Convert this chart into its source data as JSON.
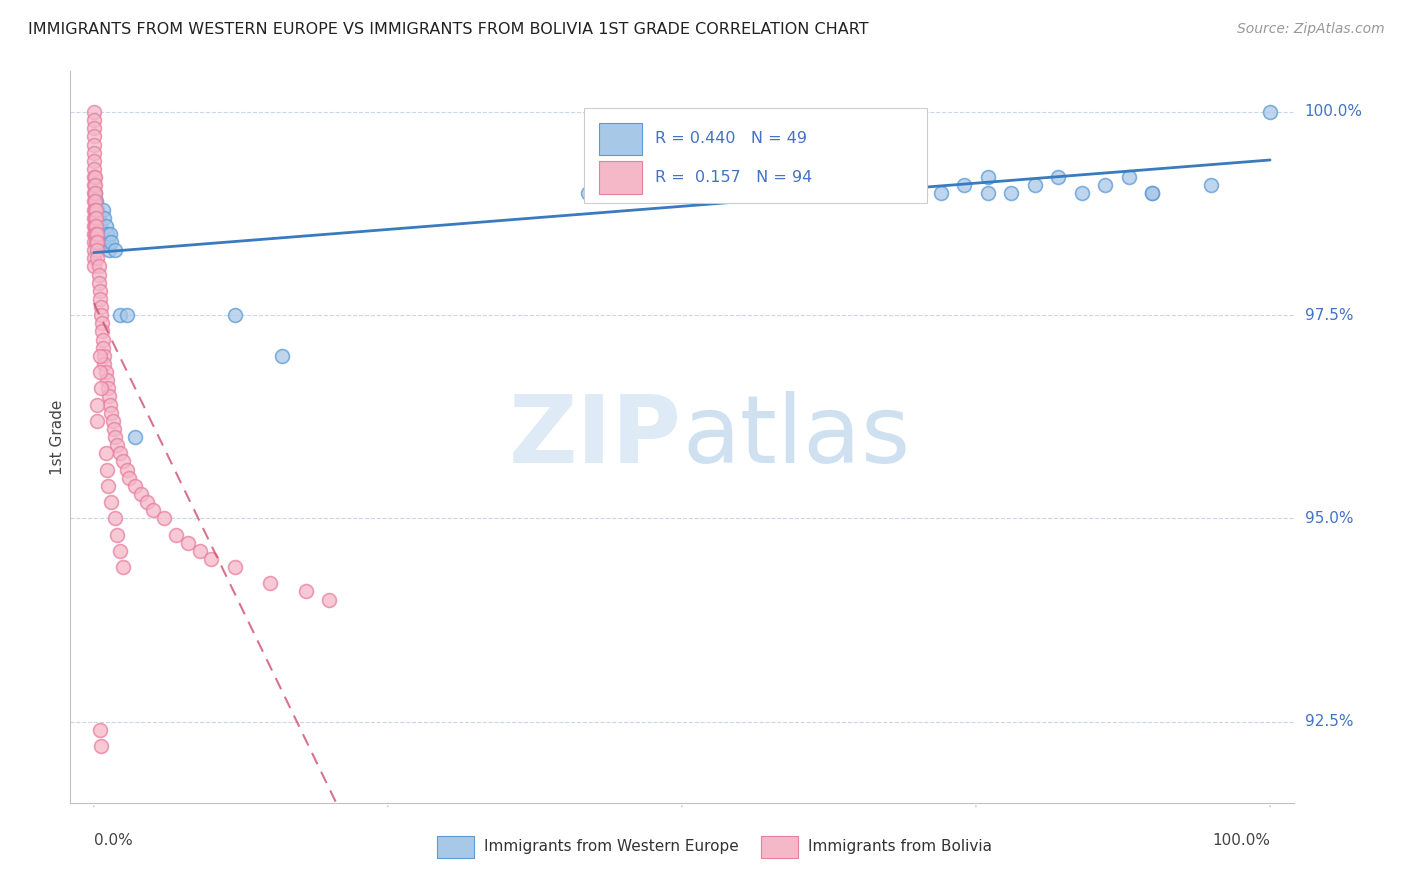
{
  "title": "IMMIGRANTS FROM WESTERN EUROPE VS IMMIGRANTS FROM BOLIVIA 1ST GRADE CORRELATION CHART",
  "source": "Source: ZipAtlas.com",
  "ylabel": "1st Grade",
  "legend_blue_label": "Immigrants from Western Europe",
  "legend_pink_label": "Immigrants from Bolivia",
  "R_blue": 0.44,
  "N_blue": 49,
  "R_pink": 0.157,
  "N_pink": 94,
  "blue_color": "#a8c8e8",
  "pink_color": "#f4b8c8",
  "blue_edge_color": "#5b9bd5",
  "pink_edge_color": "#e87fa0",
  "blue_line_color": "#3a7abf",
  "pink_line_color": "#d05070",
  "watermark_color": "#d8eaf8",
  "ylabel_right_labels": [
    "100.0%",
    "97.5%",
    "95.0%",
    "92.5%"
  ],
  "ylabel_right_values": [
    1.0,
    0.975,
    0.95,
    0.925
  ],
  "xmin": 0.0,
  "xmax": 1.0,
  "ymin": 0.915,
  "ymax": 1.005,
  "blue_x": [
    0.001,
    0.002,
    0.003,
    0.004,
    0.005,
    0.006,
    0.007,
    0.008,
    0.009,
    0.01,
    0.011,
    0.012,
    0.013,
    0.014,
    0.015,
    0.018,
    0.022,
    0.028,
    0.035,
    0.12,
    0.16,
    0.42,
    0.45,
    0.48,
    0.5,
    0.52,
    0.54,
    0.56,
    0.58,
    0.6,
    0.62,
    0.64,
    0.66,
    0.68,
    0.7,
    0.72,
    0.74,
    0.76,
    0.78,
    0.8,
    0.82,
    0.84,
    0.86,
    0.88,
    0.9,
    0.76,
    0.9,
    0.95,
    1.0
  ],
  "blue_y": [
    0.99,
    0.989,
    0.988,
    0.987,
    0.986,
    0.985,
    0.984,
    0.988,
    0.987,
    0.986,
    0.985,
    0.984,
    0.983,
    0.985,
    0.984,
    0.983,
    0.975,
    0.975,
    0.96,
    0.975,
    0.97,
    0.99,
    0.99,
    0.991,
    0.991,
    0.992,
    0.99,
    0.991,
    0.992,
    0.99,
    0.991,
    0.992,
    0.99,
    0.991,
    0.992,
    0.99,
    0.991,
    0.992,
    0.99,
    0.991,
    0.992,
    0.99,
    0.991,
    0.992,
    0.99,
    0.99,
    0.99,
    0.991,
    1.0
  ],
  "pink_x": [
    0.0,
    0.0,
    0.0,
    0.0,
    0.0,
    0.0,
    0.0,
    0.0,
    0.0,
    0.0,
    0.0,
    0.0,
    0.0,
    0.0,
    0.0,
    0.0,
    0.0,
    0.0,
    0.0,
    0.0,
    0.001,
    0.001,
    0.001,
    0.001,
    0.001,
    0.001,
    0.001,
    0.001,
    0.002,
    0.002,
    0.002,
    0.002,
    0.002,
    0.003,
    0.003,
    0.003,
    0.003,
    0.004,
    0.004,
    0.004,
    0.005,
    0.005,
    0.006,
    0.006,
    0.007,
    0.007,
    0.008,
    0.008,
    0.009,
    0.009,
    0.01,
    0.011,
    0.012,
    0.013,
    0.014,
    0.015,
    0.016,
    0.017,
    0.018,
    0.02,
    0.022,
    0.025,
    0.028,
    0.03,
    0.035,
    0.04,
    0.045,
    0.05,
    0.06,
    0.07,
    0.08,
    0.09,
    0.1,
    0.12,
    0.15,
    0.18,
    0.2,
    0.005,
    0.005,
    0.006,
    0.003,
    0.003,
    0.01,
    0.011,
    0.012,
    0.015,
    0.018,
    0.02,
    0.022,
    0.025,
    0.005,
    0.006
  ],
  "pink_y": [
    1.0,
    0.999,
    0.998,
    0.997,
    0.996,
    0.995,
    0.994,
    0.993,
    0.992,
    0.991,
    0.99,
    0.989,
    0.988,
    0.987,
    0.986,
    0.985,
    0.984,
    0.983,
    0.982,
    0.981,
    0.992,
    0.991,
    0.99,
    0.989,
    0.988,
    0.987,
    0.986,
    0.985,
    0.988,
    0.987,
    0.986,
    0.985,
    0.984,
    0.985,
    0.984,
    0.983,
    0.982,
    0.981,
    0.98,
    0.979,
    0.978,
    0.977,
    0.976,
    0.975,
    0.974,
    0.973,
    0.972,
    0.971,
    0.97,
    0.969,
    0.968,
    0.967,
    0.966,
    0.965,
    0.964,
    0.963,
    0.962,
    0.961,
    0.96,
    0.959,
    0.958,
    0.957,
    0.956,
    0.955,
    0.954,
    0.953,
    0.952,
    0.951,
    0.95,
    0.948,
    0.947,
    0.946,
    0.945,
    0.944,
    0.942,
    0.941,
    0.94,
    0.97,
    0.968,
    0.966,
    0.964,
    0.962,
    0.958,
    0.956,
    0.954,
    0.952,
    0.95,
    0.948,
    0.946,
    0.944,
    0.924,
    0.922
  ]
}
